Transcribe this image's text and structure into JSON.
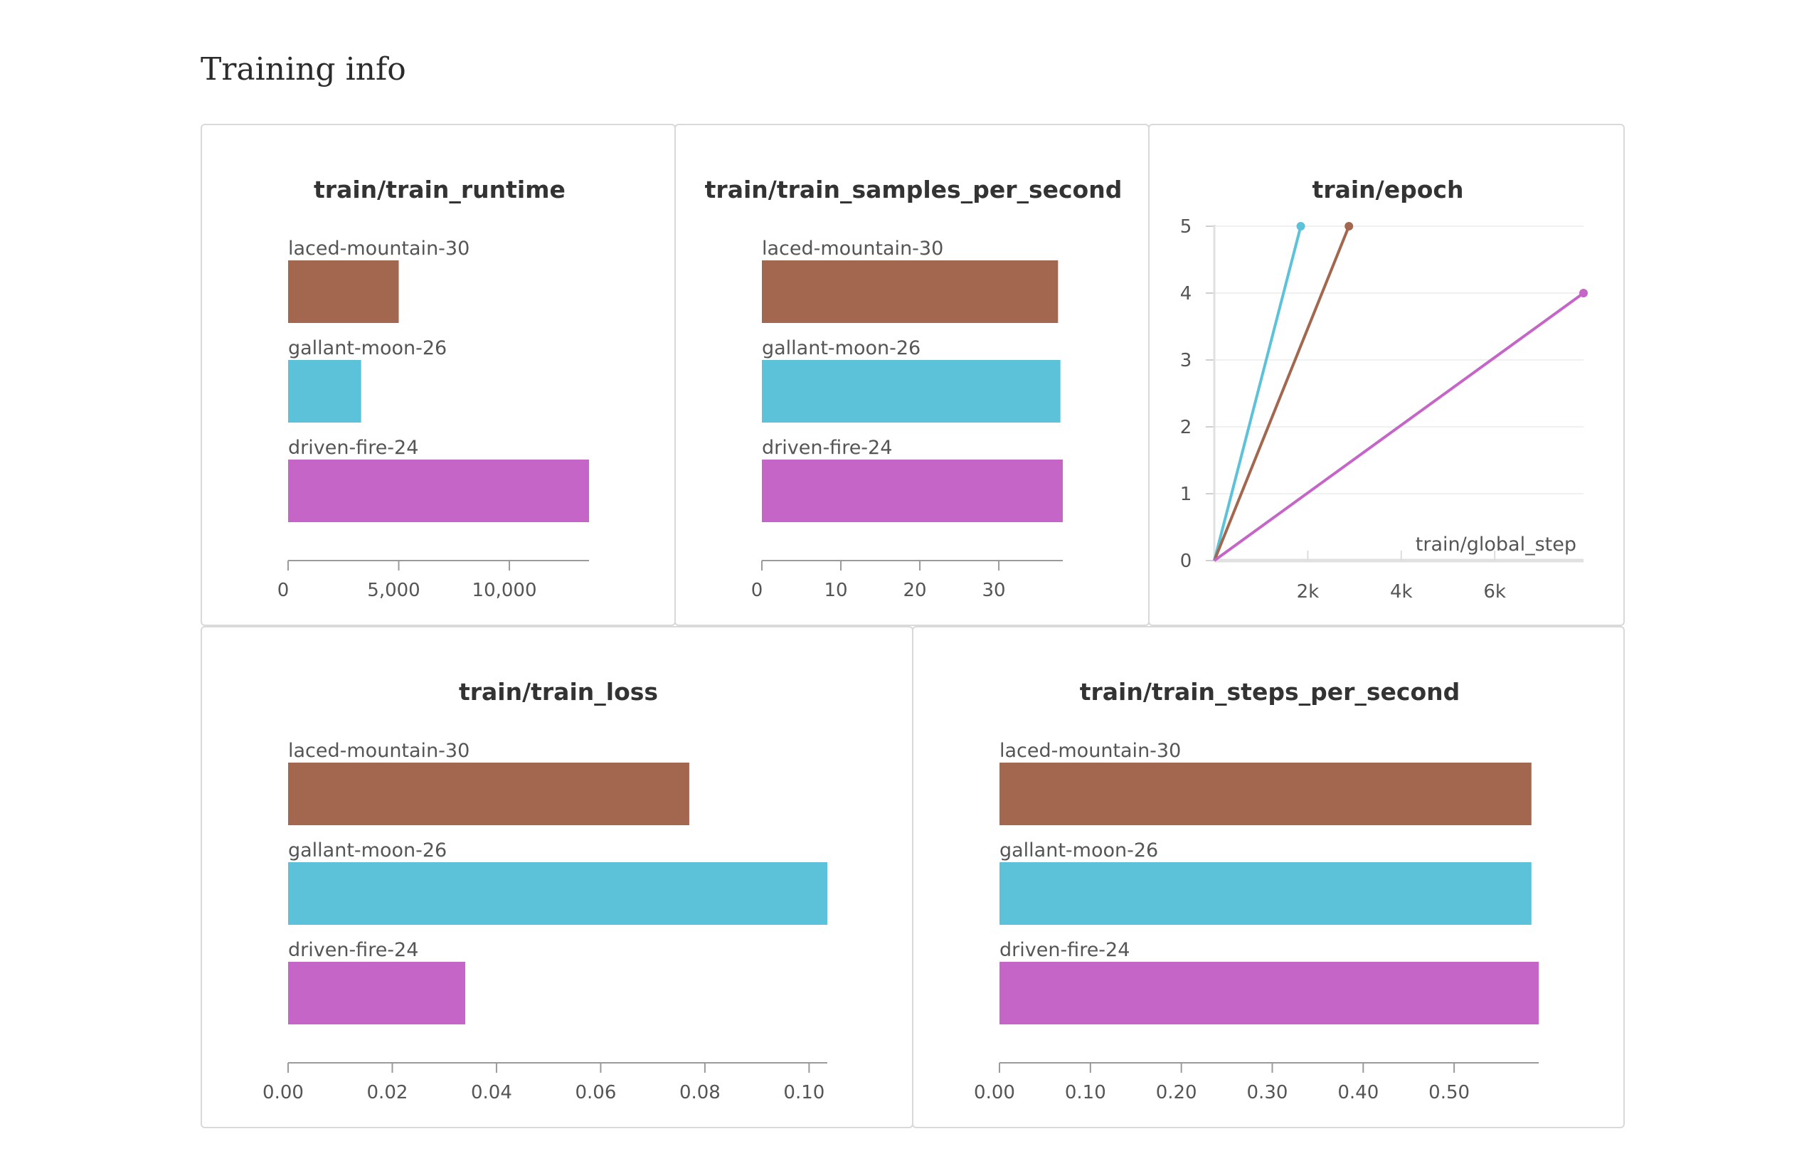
{
  "page": {
    "section_title": "Training info"
  },
  "colors": {
    "laced-mountain-30": "#a3674f",
    "gallant-moon-26": "#5bc2d9",
    "driven-fire-24": "#c465c7"
  },
  "chart_data": [
    {
      "id": "runtime",
      "type": "bar",
      "orientation": "horizontal",
      "title": "train/train_runtime",
      "categories": [
        "laced-mountain-30",
        "gallant-moon-26",
        "driven-fire-24"
      ],
      "values": [
        5000,
        3300,
        13600
      ],
      "xlim": [
        0,
        13600
      ],
      "xticks": [
        0,
        5000,
        10000
      ],
      "xtick_labels": [
        "0",
        "5,000",
        "10,000"
      ]
    },
    {
      "id": "samples",
      "type": "bar",
      "orientation": "horizontal",
      "title": "train/train_samples_per_second",
      "categories": [
        "laced-mountain-30",
        "gallant-moon-26",
        "driven-fire-24"
      ],
      "values": [
        37.5,
        37.8,
        38.1
      ],
      "xlim": [
        0,
        38.1
      ],
      "xticks": [
        0,
        10,
        20,
        30
      ],
      "xtick_labels": [
        "0",
        "10",
        "20",
        "30"
      ]
    },
    {
      "id": "epoch",
      "type": "line",
      "title": "train/epoch",
      "xlabel": "train/global_step",
      "xlim": [
        0,
        7900
      ],
      "ylim": [
        0,
        5
      ],
      "xticks": [
        2000,
        4000,
        6000
      ],
      "xtick_labels": [
        "2k",
        "4k",
        "6k"
      ],
      "yticks": [
        0,
        1,
        2,
        3,
        4,
        5
      ],
      "ytick_labels": [
        "0",
        "1",
        "2",
        "3",
        "4",
        "5"
      ],
      "series": [
        {
          "name": "gallant-moon-26",
          "x": [
            0,
            1850
          ],
          "y": [
            0,
            5
          ]
        },
        {
          "name": "laced-mountain-30",
          "x": [
            0,
            2880
          ],
          "y": [
            0,
            5
          ]
        },
        {
          "name": "driven-fire-24",
          "x": [
            0,
            7900
          ],
          "y": [
            0,
            4
          ]
        }
      ]
    },
    {
      "id": "loss",
      "type": "bar",
      "orientation": "horizontal",
      "title": "train/train_loss",
      "categories": [
        "laced-mountain-30",
        "gallant-moon-26",
        "driven-fire-24"
      ],
      "values": [
        0.077,
        0.1035,
        0.034
      ],
      "xlim": [
        0,
        0.1035
      ],
      "xticks": [
        0,
        0.02,
        0.04,
        0.06,
        0.08,
        0.1
      ],
      "xtick_labels": [
        "0.00",
        "0.02",
        "0.04",
        "0.06",
        "0.08",
        "0.10"
      ]
    },
    {
      "id": "steps",
      "type": "bar",
      "orientation": "horizontal",
      "title": "train/train_steps_per_second",
      "categories": [
        "laced-mountain-30",
        "gallant-moon-26",
        "driven-fire-24"
      ],
      "values": [
        0.585,
        0.585,
        0.593
      ],
      "xlim": [
        0,
        0.593
      ],
      "xticks": [
        0,
        0.1,
        0.2,
        0.3,
        0.4,
        0.5
      ],
      "xtick_labels": [
        "0.00",
        "0.10",
        "0.20",
        "0.30",
        "0.40",
        "0.50"
      ]
    }
  ]
}
